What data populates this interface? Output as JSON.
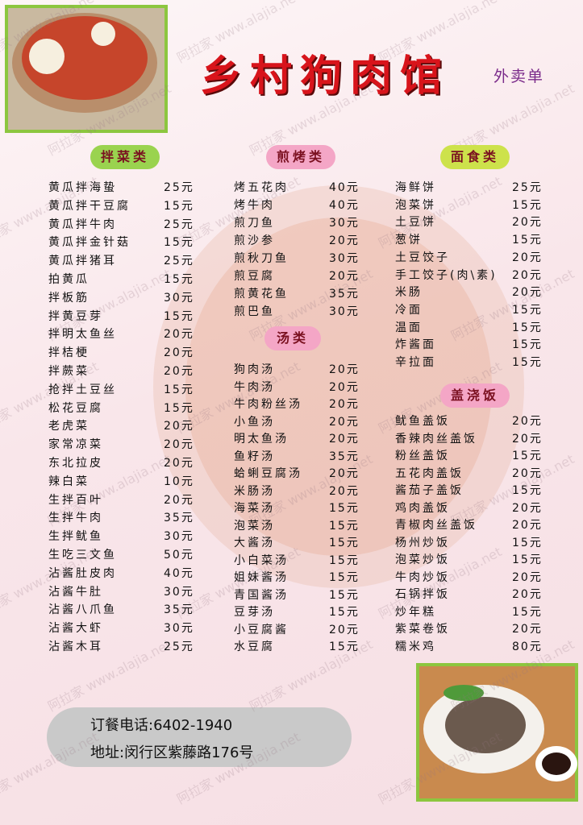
{
  "header": {
    "title": "乡村狗肉馆",
    "subtitle": "外卖单"
  },
  "watermark": "阿拉家 www.alajia.net",
  "sections": [
    {
      "title": "拌菜类",
      "items": [
        [
          "黄瓜拌海蛰",
          "25元"
        ],
        [
          "黄瓜拌干豆腐",
          "15元"
        ],
        [
          "黄瓜拌牛肉",
          "25元"
        ],
        [
          "黄瓜拌金针菇",
          "15元"
        ],
        [
          "黄瓜拌猪耳",
          "25元"
        ],
        [
          "拍黄瓜",
          "15元"
        ],
        [
          "拌板筋",
          "30元"
        ],
        [
          "拌黄豆芽",
          "15元"
        ],
        [
          "拌明太鱼丝",
          "20元"
        ],
        [
          "拌桔梗",
          "20元"
        ],
        [
          "拌蕨菜",
          "20元"
        ],
        [
          "抢拌土豆丝",
          "15元"
        ],
        [
          "松花豆腐",
          "15元"
        ],
        [
          "老虎菜",
          "20元"
        ],
        [
          "家常凉菜",
          "20元"
        ],
        [
          "东北拉皮",
          "20元"
        ],
        [
          "辣白菜",
          "10元"
        ],
        [
          "生拌百叶",
          "20元"
        ],
        [
          "生拌牛肉",
          "35元"
        ],
        [
          "生拌鱿鱼",
          "30元"
        ],
        [
          "生吃三文鱼",
          "50元"
        ],
        [
          "沾酱肚皮肉",
          "40元"
        ],
        [
          "沾酱牛肚",
          "30元"
        ],
        [
          "沾酱八爪鱼",
          "35元"
        ],
        [
          "沾酱大虾",
          "30元"
        ],
        [
          "沾酱木耳",
          "25元"
        ]
      ]
    },
    {
      "title": "煎烤类",
      "items": [
        [
          "烤五花肉",
          "40元"
        ],
        [
          "烤牛肉",
          "40元"
        ],
        [
          "煎刀鱼",
          "30元"
        ],
        [
          "煎沙参",
          "20元"
        ],
        [
          "煎秋刀鱼",
          "30元"
        ],
        [
          "煎豆腐",
          "20元"
        ],
        [
          "煎黄花鱼",
          "35元"
        ],
        [
          "煎巴鱼",
          "30元"
        ]
      ]
    },
    {
      "title": "汤类",
      "items": [
        [
          "狗肉汤",
          "20元"
        ],
        [
          "牛肉汤",
          "20元"
        ],
        [
          "牛肉粉丝汤",
          "20元"
        ],
        [
          "小鱼汤",
          "20元"
        ],
        [
          "明太鱼汤",
          "20元"
        ],
        [
          "鱼籽汤",
          "35元"
        ],
        [
          "蛤蜊豆腐汤",
          "20元"
        ],
        [
          "米肠汤",
          "20元"
        ],
        [
          "海菜汤",
          "15元"
        ],
        [
          "泡菜汤",
          "15元"
        ],
        [
          "大酱汤",
          "15元"
        ],
        [
          "小白菜汤",
          "15元"
        ],
        [
          "姐妹酱汤",
          "15元"
        ],
        [
          "青国酱汤",
          "15元"
        ],
        [
          "豆芽汤",
          "15元"
        ],
        [
          "小豆腐酱",
          "20元"
        ],
        [
          "水豆腐",
          "15元"
        ]
      ]
    },
    {
      "title": "面食类",
      "items": [
        [
          "海鲜饼",
          "25元"
        ],
        [
          "泡菜饼",
          "15元"
        ],
        [
          "土豆饼",
          "20元"
        ],
        [
          "葱饼",
          "15元"
        ],
        [
          "土豆饺子",
          "20元"
        ],
        [
          "手工饺子(肉\\素)",
          "20元"
        ],
        [
          "米肠",
          "20元"
        ],
        [
          "冷面",
          "15元"
        ],
        [
          "温面",
          "15元"
        ],
        [
          "炸酱面",
          "15元"
        ],
        [
          "辛拉面",
          "15元"
        ]
      ]
    },
    {
      "title": "盖浇饭",
      "items": [
        [
          "鱿鱼盖饭",
          "20元"
        ],
        [
          "香辣肉丝盖饭",
          "20元"
        ],
        [
          "粉丝盖饭",
          "15元"
        ],
        [
          "五花肉盖饭",
          "20元"
        ],
        [
          "酱茄子盖饭",
          "15元"
        ],
        [
          "鸡肉盖饭",
          "20元"
        ],
        [
          "青椒肉丝盖饭",
          "20元"
        ],
        [
          "杨州炒饭",
          "15元"
        ],
        [
          "泡菜炒饭",
          "15元"
        ],
        [
          "牛肉炒饭",
          "20元"
        ],
        [
          "石锅拌饭",
          "20元"
        ],
        [
          "炒年糕",
          "15元"
        ],
        [
          "紫菜卷饭",
          "20元"
        ],
        [
          "糯米鸡",
          "80元"
        ]
      ]
    }
  ],
  "footer": {
    "phone": "订餐电话:6402-1940",
    "address": "地址:闵行区紫藤路176号"
  }
}
